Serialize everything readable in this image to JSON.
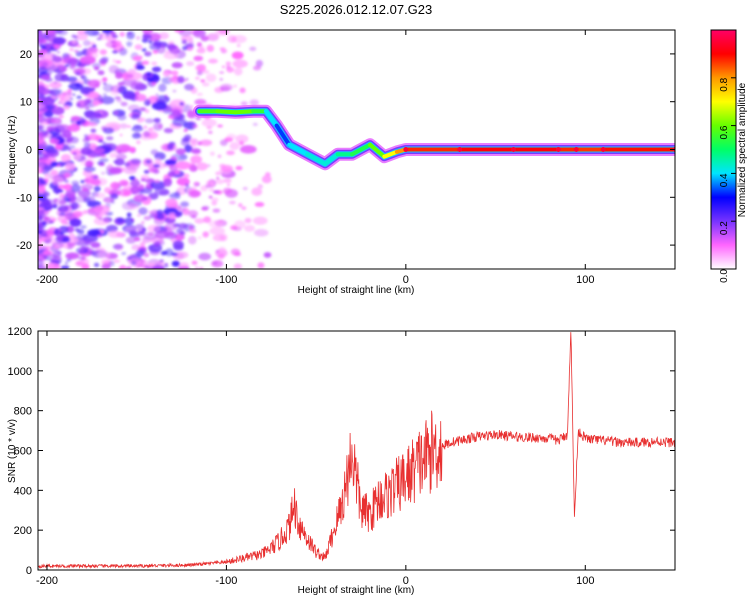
{
  "title": "S225.2026.012.12.07.G23",
  "chart_data": [
    {
      "type": "heatmap",
      "name": "spectrogram",
      "xlabel": "Height of straight line (km)",
      "ylabel": "Frequency (Hz)",
      "xlim": [
        -205,
        150
      ],
      "ylim": [
        -25,
        25
      ],
      "xticks": [
        -200,
        -100,
        0,
        100
      ],
      "yticks": [
        -20,
        -10,
        0,
        10,
        20
      ],
      "colorbar": {
        "label": "Normalized spectral amplitude",
        "range": [
          0.0,
          1.0
        ],
        "ticks": [
          0.0,
          0.2,
          0.4,
          0.6,
          0.8
        ],
        "colors": [
          "#ffffff",
          "#ff66ff",
          "#7733ff",
          "#0000ff",
          "#00e5ff",
          "#00ff66",
          "#66ff00",
          "#ffff00",
          "#ff9900",
          "#ff0000",
          "#ff0066"
        ]
      },
      "ridge": [
        {
          "x": -115,
          "y": 8,
          "v": 0.55
        },
        {
          "x": -105,
          "y": 8,
          "v": 0.6
        },
        {
          "x": -95,
          "y": 7.8,
          "v": 0.6
        },
        {
          "x": -85,
          "y": 8,
          "v": 0.6
        },
        {
          "x": -78,
          "y": 8,
          "v": 0.5
        },
        {
          "x": -72,
          "y": 5,
          "v": 0.3
        },
        {
          "x": -65,
          "y": 1,
          "v": 0.35
        },
        {
          "x": -55,
          "y": -1,
          "v": 0.45
        },
        {
          "x": -45,
          "y": -3,
          "v": 0.4
        },
        {
          "x": -38,
          "y": -1,
          "v": 0.45
        },
        {
          "x": -30,
          "y": -1,
          "v": 0.5
        },
        {
          "x": -20,
          "y": 1,
          "v": 0.55
        },
        {
          "x": -12,
          "y": -1.5,
          "v": 0.65
        },
        {
          "x": -5,
          "y": -0.5,
          "v": 0.75
        },
        {
          "x": 0,
          "y": 0,
          "v": 0.85
        },
        {
          "x": 30,
          "y": 0,
          "v": 0.9
        },
        {
          "x": 60,
          "y": 0,
          "v": 0.92
        },
        {
          "x": 85,
          "y": 0,
          "v": 0.9
        },
        {
          "x": 95,
          "y": 0,
          "v": 0.85
        },
        {
          "x": 110,
          "y": 0,
          "v": 0.88
        },
        {
          "x": 150,
          "y": 0,
          "v": 0.9
        }
      ]
    },
    {
      "type": "line",
      "name": "snr",
      "xlabel": "Height of straight line (km)",
      "ylabel": "SNR (10 * v/v)",
      "xlim": [
        -205,
        150
      ],
      "ylim": [
        0,
        1200
      ],
      "xticks": [
        -200,
        -100,
        0,
        100
      ],
      "yticks": [
        0,
        200,
        400,
        600,
        800,
        1000,
        1200
      ],
      "color": "#e83030",
      "series": [
        {
          "name": "SNR",
          "x": [
            -205,
            -180,
            -150,
            -120,
            -100,
            -90,
            -80,
            -75,
            -70,
            -65,
            -62,
            -60,
            -55,
            -50,
            -45,
            -40,
            -35,
            -30,
            -25,
            -20,
            -15,
            -10,
            -5,
            0,
            5,
            10,
            15,
            20,
            25,
            30,
            35,
            40,
            50,
            60,
            70,
            80,
            85,
            90,
            92,
            94,
            96,
            100,
            110,
            120,
            130,
            140,
            150
          ],
          "y": [
            20,
            20,
            20,
            25,
            40,
            60,
            80,
            110,
            150,
            220,
            330,
            240,
            160,
            90,
            60,
            200,
            350,
            600,
            300,
            280,
            360,
            380,
            420,
            460,
            510,
            560,
            600,
            620,
            640,
            650,
            660,
            670,
            680,
            670,
            665,
            660,
            650,
            680,
            1200,
            250,
            700,
            660,
            650,
            640,
            640,
            645,
            640
          ]
        }
      ]
    }
  ]
}
